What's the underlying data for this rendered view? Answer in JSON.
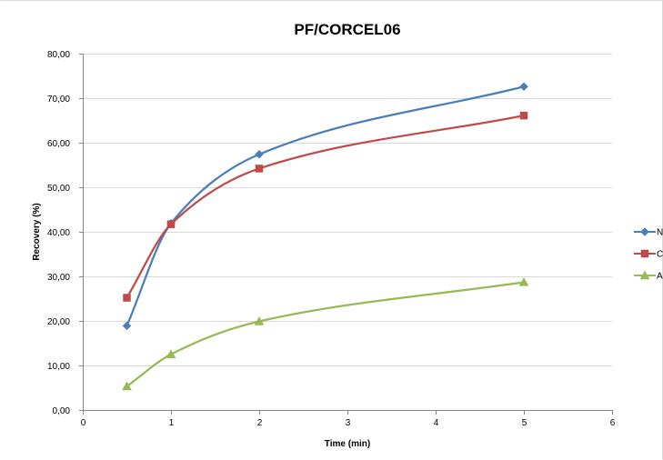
{
  "chart_data": {
    "type": "line",
    "title": "PF/CORCEL06",
    "xlabel": "Time (min)",
    "ylabel": "Recovery (%)",
    "xlim": [
      0,
      6
    ],
    "ylim": [
      0,
      80
    ],
    "x_ticks": [
      "0",
      "1",
      "2",
      "3",
      "4",
      "5",
      "6"
    ],
    "y_ticks": [
      "0,00",
      "10,00",
      "20,00",
      "30,00",
      "40,00",
      "50,00",
      "60,00",
      "70,00",
      "80,00"
    ],
    "grid": "horizontal",
    "legend_position": "right",
    "smoothed": true,
    "series": [
      {
        "name": "N",
        "color": "#4a7ebb",
        "marker": "diamond",
        "x": [
          0.5,
          1,
          2,
          5
        ],
        "y": [
          18.9,
          41.9,
          57.4,
          72.6
        ]
      },
      {
        "name": "C",
        "color": "#be4b48",
        "marker": "square",
        "x": [
          0.5,
          1,
          2,
          5
        ],
        "y": [
          25.2,
          41.7,
          54.2,
          66.1
        ]
      },
      {
        "name": "A",
        "color": "#98b954",
        "marker": "triangle",
        "x": [
          0.5,
          1,
          2,
          5
        ],
        "y": [
          5.3,
          12.5,
          19.9,
          28.7
        ]
      }
    ]
  }
}
